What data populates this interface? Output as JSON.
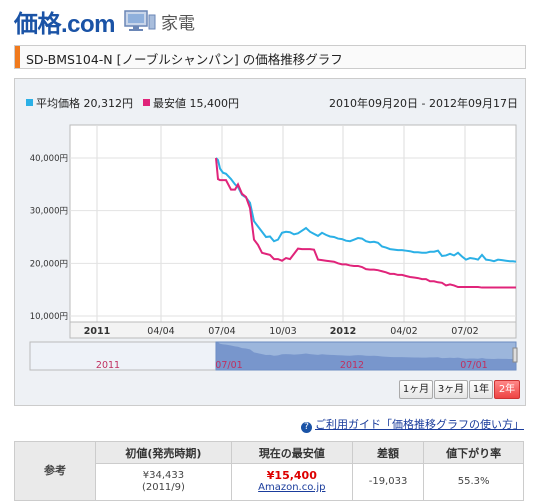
{
  "header": {
    "logo_main": "価格",
    "logo_dot": ".",
    "logo_com": "com",
    "category": "家電"
  },
  "page_title": "SD-BMS104-N [ノーブルシャンパン] の価格推移グラフ",
  "legend": {
    "avg_label": "平均価格 20,312円",
    "min_label": "最安値 15,400円"
  },
  "period": "2010年09月20日 - 2012年09月17日",
  "colors": {
    "avg": "#2bb0e6",
    "min": "#e0247a",
    "accent": "#f07a1d",
    "brand": "#1a53a6"
  },
  "chart_data": {
    "type": "line",
    "y_ticks": [
      "40,000円",
      "30,000円",
      "20,000円",
      "10,000円"
    ],
    "ylim": [
      10000,
      40000
    ],
    "x_ticks": [
      "2011",
      "04/04",
      "07/04",
      "10/03",
      "2012",
      "04/02",
      "07/02"
    ],
    "nav_labels": [
      "2011",
      "07/01",
      "2012",
      "07/01"
    ],
    "series": [
      {
        "name": "平均価格",
        "x": [
          0,
          2,
          4,
          7,
          10,
          15,
          19,
          22,
          26,
          30,
          34,
          38,
          42,
          46,
          50,
          54,
          58,
          62,
          66,
          70,
          74,
          78,
          82,
          86,
          90,
          94,
          98,
          102,
          106,
          110,
          114,
          118,
          122,
          126,
          130,
          134,
          138,
          142,
          146,
          150,
          154,
          158,
          162,
          166,
          170,
          174,
          178,
          182,
          186,
          190,
          194,
          198,
          202,
          206,
          210,
          214,
          218,
          222,
          226,
          230,
          234,
          238,
          242,
          246,
          250,
          254,
          258,
          262,
          266,
          270,
          274,
          278,
          282,
          286,
          290,
          294,
          297,
          300
        ],
        "values": [
          40000,
          39600,
          38000,
          37200,
          37000,
          36000,
          35000,
          34500,
          33000,
          32500,
          31500,
          28000,
          27000,
          26000,
          25000,
          25100,
          24200,
          24500,
          25800,
          26000,
          25900,
          25500,
          25700,
          26200,
          26700,
          26000,
          25600,
          25200,
          25800,
          25400,
          25100,
          25000,
          24700,
          24600,
          24300,
          24200,
          24500,
          24800,
          24700,
          24200,
          24000,
          24100,
          23900,
          23200,
          23000,
          22700,
          22600,
          22500,
          22500,
          22400,
          22300,
          22100,
          22100,
          22000,
          22000,
          22200,
          22200,
          22400,
          21400,
          21500,
          21800,
          21500,
          22000,
          21300,
          20700,
          21000,
          20900,
          20700,
          21600,
          20700,
          20600,
          20400,
          20700,
          20600,
          20500,
          20400,
          20400,
          20312
        ]
      },
      {
        "name": "最安値",
        "x": [
          0,
          2,
          4,
          7,
          10,
          15,
          19,
          22,
          26,
          30,
          34,
          38,
          42,
          46,
          50,
          54,
          58,
          62,
          66,
          70,
          74,
          78,
          82,
          86,
          90,
          94,
          98,
          102,
          106,
          110,
          114,
          118,
          122,
          126,
          130,
          134,
          138,
          142,
          146,
          150,
          154,
          158,
          162,
          166,
          170,
          174,
          178,
          182,
          186,
          190,
          194,
          198,
          202,
          206,
          210,
          214,
          218,
          222,
          226,
          230,
          234,
          238,
          242,
          246,
          250,
          254,
          258,
          262,
          266,
          270,
          274,
          278,
          282,
          286,
          290,
          294,
          297,
          300
        ],
        "values": [
          40000,
          36000,
          35800,
          35800,
          35800,
          34000,
          34000,
          35000,
          33200,
          32600,
          30500,
          24500,
          23500,
          22000,
          21800,
          21600,
          20800,
          20800,
          20500,
          21000,
          20800,
          21800,
          22800,
          22700,
          22700,
          22700,
          22600,
          20700,
          20600,
          20500,
          20400,
          20300,
          20000,
          19800,
          19800,
          19600,
          19500,
          19500,
          19300,
          18900,
          18800,
          18800,
          18700,
          18500,
          18300,
          18000,
          18000,
          17800,
          17800,
          17600,
          17400,
          17300,
          17200,
          17000,
          17000,
          16600,
          16600,
          16400,
          16300,
          15800,
          16000,
          15800,
          15500,
          15500,
          15500,
          15500,
          15500,
          15500,
          15400,
          15400,
          15400,
          15400,
          15400,
          15400,
          15400,
          15400,
          15400,
          15400
        ]
      }
    ],
    "grid": true,
    "legend_position": "top-left"
  },
  "range_buttons": [
    {
      "label": "1ヶ月"
    },
    {
      "label": "3ヶ月"
    },
    {
      "label": "1年"
    },
    {
      "label": "2年"
    }
  ],
  "guide_link": "ご利用ガイド「価格推移グラフの使い方」",
  "ref_table": {
    "row_header": "参考",
    "headers": [
      "初値(発売時期)",
      "現在の最安値",
      "差額",
      "値下がり率"
    ],
    "first_price": "¥34,433",
    "release": "(2011/9)",
    "current_min": "¥15,400",
    "shop": "Amazon.co.jp",
    "diff": "-19,033",
    "rate": "55.3%"
  }
}
